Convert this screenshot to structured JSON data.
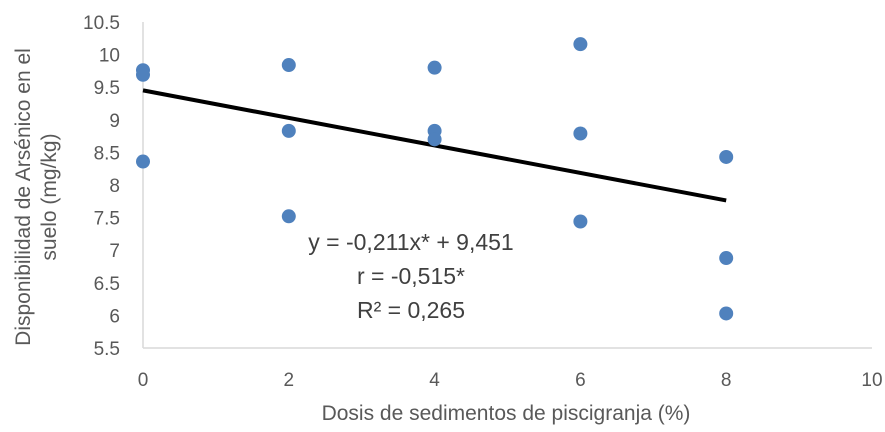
{
  "chart_data": {
    "type": "scatter",
    "title": "",
    "xlabel": "Dosis de sedimentos de piscigranja (%)",
    "ylabel_line1": "Disponibilidad de Arsénico en el",
    "ylabel_line2": "suelo (mg/kg)",
    "xlim": [
      0,
      10
    ],
    "ylim": [
      5.5,
      10.5
    ],
    "x_ticks": [
      "0",
      "2",
      "4",
      "6",
      "8",
      "10"
    ],
    "y_ticks": [
      "5.5",
      "6",
      "6.5",
      "7",
      "7.5",
      "8",
      "8.5",
      "9",
      "9.5",
      "10",
      "10.5"
    ],
    "grid": false,
    "legend": "none",
    "series": [
      {
        "x": [
          0,
          0,
          0,
          2,
          2,
          2,
          4,
          4,
          4,
          6,
          6,
          6,
          8,
          8,
          8
        ],
        "y": [
          9.76,
          9.69,
          8.36,
          9.84,
          8.83,
          7.52,
          9.8,
          8.83,
          8.7,
          10.16,
          8.79,
          7.44,
          8.43,
          6.88,
          6.03
        ],
        "color": "#4f81bd"
      }
    ],
    "trendline": {
      "slope": -0.211,
      "intercept": 9.451,
      "x_range": [
        0,
        8
      ],
      "color": "#000000"
    },
    "annotations": [
      "y = -0,211x* + 9,451",
      "r = -0,515*",
      "R² = 0,265"
    ]
  }
}
